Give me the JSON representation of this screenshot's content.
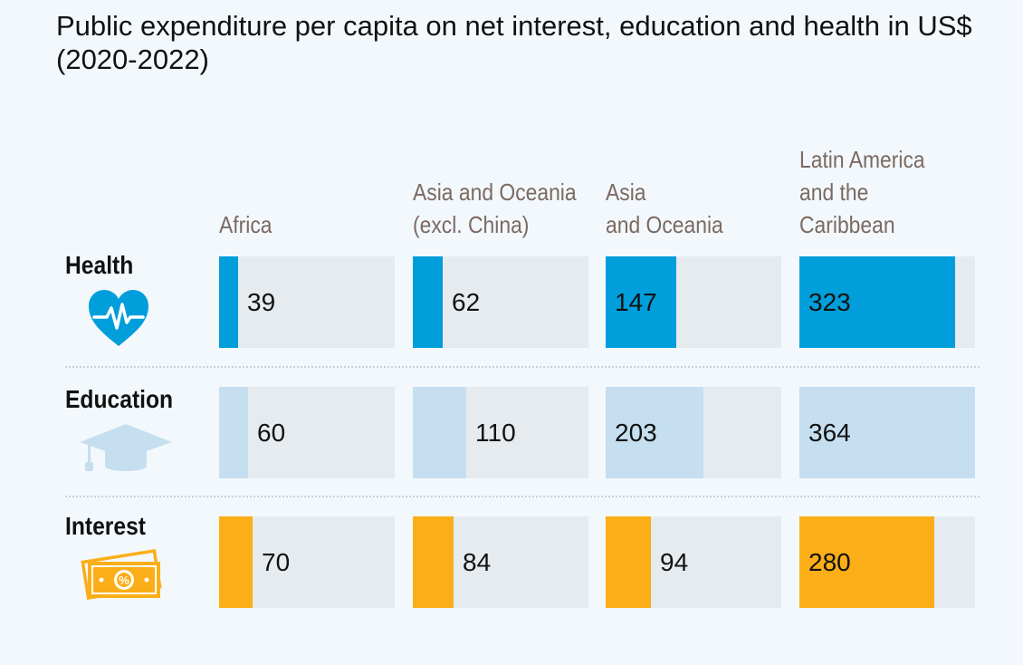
{
  "title": "Public expenditure per capita on net interest, education and health in US$ (2020-2022)",
  "chart_data": {
    "type": "bar",
    "title": "Public expenditure per capita on net interest, education and health in US$ (2020-2022)",
    "regions": [
      {
        "lines": [
          "Africa"
        ]
      },
      {
        "lines": [
          "Asia and Oceania",
          "(excl. China)"
        ]
      },
      {
        "lines": [
          "Asia",
          "and Oceania"
        ]
      },
      {
        "lines": [
          "Latin America",
          "and the",
          "Caribbean"
        ]
      }
    ],
    "categories": [
      "Africa",
      "Asia and Oceania (excl. China)",
      "Asia and Oceania",
      "Latin America and the Caribbean"
    ],
    "xlim": [
      0,
      364
    ],
    "series": [
      {
        "name": "Health",
        "icon": "heart-pulse-icon",
        "color": "#009edb",
        "values": [
          39,
          62,
          147,
          323
        ],
        "labels": [
          "39",
          "62",
          "147",
          "323"
        ]
      },
      {
        "name": "Education",
        "icon": "graduation-cap-icon",
        "color": "#c5dff0",
        "values": [
          60,
          110,
          203,
          364
        ],
        "labels": [
          "60",
          "110",
          "203",
          "364"
        ]
      },
      {
        "name": "Interest",
        "icon": "money-percent-icon",
        "color": "#fbae17",
        "values": [
          70,
          84,
          94,
          280
        ],
        "labels": [
          "70",
          "84",
          "94",
          "280"
        ]
      }
    ]
  }
}
